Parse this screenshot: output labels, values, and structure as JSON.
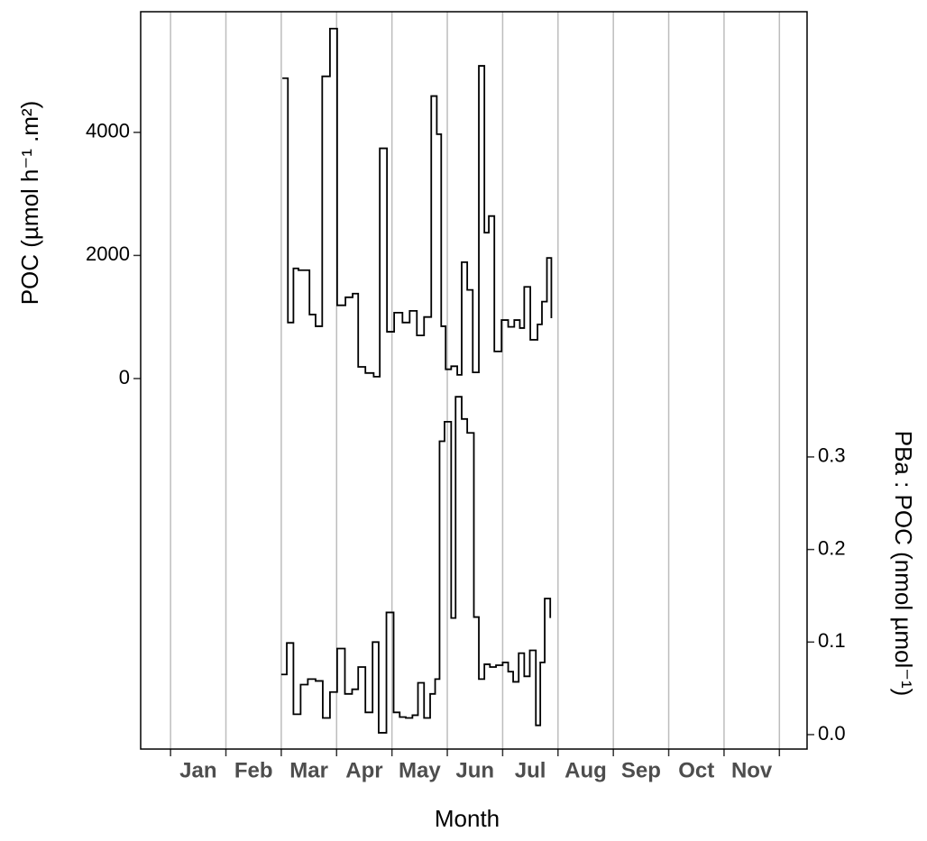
{
  "chart_data": {
    "type": "line",
    "step": "hv",
    "x_label": "Month",
    "y_label": "POC (µmol h⁻¹ .m²)",
    "y2_label": "PBa : POC (nmol µmol⁻¹)",
    "xlim": [
      0.46,
      12.5
    ],
    "xticks": [
      {
        "value": 1,
        "label": "Jan"
      },
      {
        "value": 2,
        "label": "Feb"
      },
      {
        "value": 3,
        "label": "Mar"
      },
      {
        "value": 4,
        "label": "Apr"
      },
      {
        "value": 5,
        "label": "May"
      },
      {
        "value": 6,
        "label": "Jun"
      },
      {
        "value": 7,
        "label": "Jul"
      },
      {
        "value": 8,
        "label": "Aug"
      },
      {
        "value": 9,
        "label": "Sep"
      },
      {
        "value": 10,
        "label": "Oct"
      },
      {
        "value": 11,
        "label": "Nov"
      },
      {
        "value": 12,
        "label": null
      }
    ],
    "ylim": [
      -6020,
      5960
    ],
    "yticks": [
      0,
      2000,
      4000
    ],
    "y2lim": [
      -0.0156,
      0.781
    ],
    "y2ticks": [
      {
        "value": 0,
        "label": "0.0"
      },
      0.1,
      0.2,
      0.3
    ],
    "grid": true,
    "series": [
      {
        "color": "#000000",
        "x": [
          3.02,
          3.12,
          3.22,
          3.31,
          3.51,
          3.62,
          3.74,
          3.88,
          4.01,
          4.16,
          4.29,
          4.39,
          4.52,
          4.67,
          4.78,
          4.91,
          5.04,
          5.19,
          5.32,
          5.45,
          5.58,
          5.71,
          5.81,
          5.89,
          5.97,
          6.07,
          6.18,
          6.26,
          6.36,
          6.46,
          6.57,
          6.67,
          6.75,
          6.85,
          6.98,
          7.1,
          7.21,
          7.31,
          7.39,
          7.5,
          7.63,
          7.71,
          7.8,
          7.88
        ],
        "values": [
          4880,
          910,
          1790,
          1760,
          1040,
          850,
          4910,
          5685,
          1190,
          1320,
          1380,
          190,
          90,
          30,
          3740,
          760,
          1070,
          910,
          1100,
          700,
          1000,
          4590,
          3970,
          850,
          150,
          200,
          60,
          1890,
          1440,
          100,
          5080,
          2370,
          2640,
          440,
          950,
          840,
          950,
          820,
          1490,
          630,
          880,
          1250,
          1960,
          980
        ]
      },
      {
        "color": "#000000",
        "axis": "y2",
        "x": [
          3.0,
          3.1,
          3.22,
          3.35,
          3.48,
          3.62,
          3.75,
          3.88,
          4.01,
          4.15,
          4.28,
          4.39,
          4.52,
          4.65,
          4.76,
          4.9,
          5.03,
          5.14,
          5.25,
          5.37,
          5.47,
          5.58,
          5.69,
          5.78,
          5.86,
          5.95,
          6.07,
          6.15,
          6.26,
          6.36,
          6.48,
          6.57,
          6.67,
          6.77,
          6.88,
          7.0,
          7.1,
          7.19,
          7.29,
          7.39,
          7.49,
          7.6,
          7.68,
          7.76,
          7.86
        ],
        "values": [
          0.065,
          0.099,
          0.022,
          0.054,
          0.06,
          0.058,
          0.018,
          0.046,
          0.093,
          0.044,
          0.049,
          0.073,
          0.024,
          0.1,
          0.002,
          0.132,
          0.024,
          0.019,
          0.018,
          0.021,
          0.056,
          0.018,
          0.044,
          0.06,
          0.317,
          0.338,
          0.126,
          0.365,
          0.341,
          0.326,
          0.127,
          0.06,
          0.076,
          0.073,
          0.075,
          0.078,
          0.068,
          0.057,
          0.088,
          0.063,
          0.091,
          0.01,
          0.078,
          0.147,
          0.126
        ]
      }
    ]
  }
}
